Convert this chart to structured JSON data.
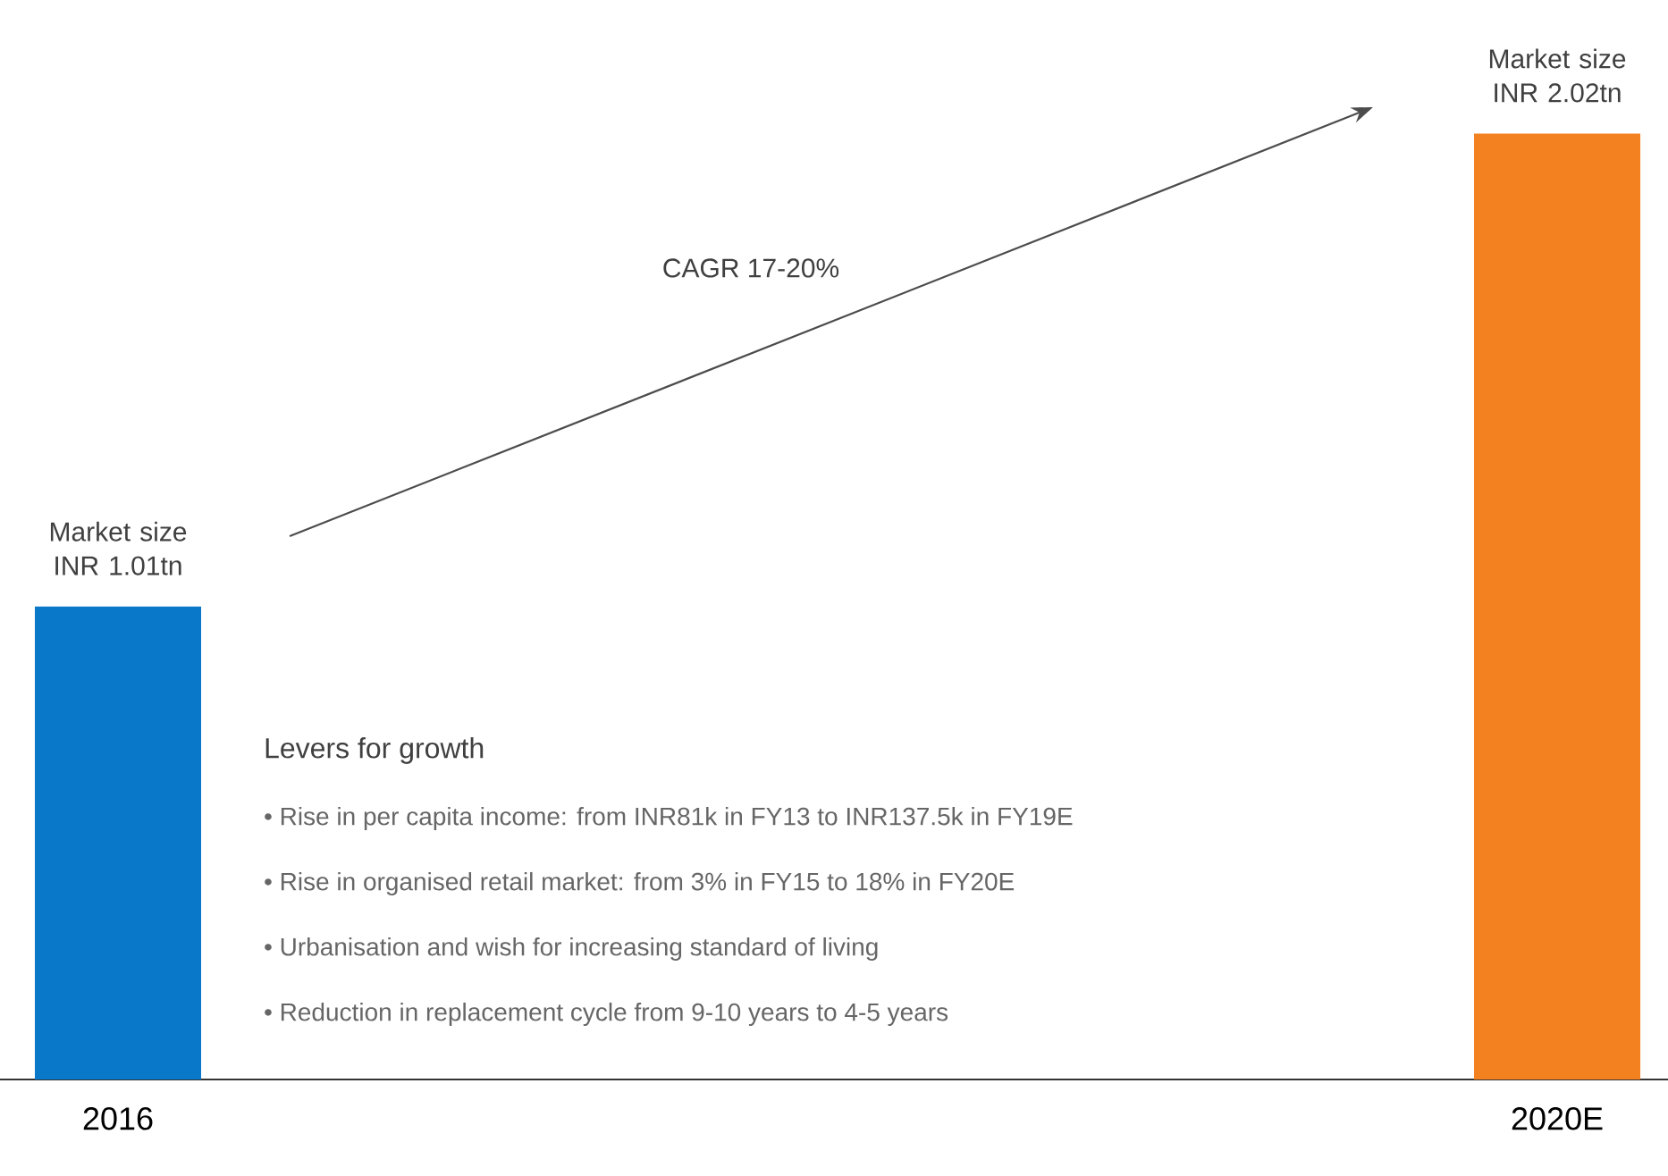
{
  "chart_data": {
    "type": "bar",
    "categories": [
      "2016",
      "2020E"
    ],
    "values": [
      1.01,
      2.02
    ],
    "colors": [
      "#0a78c8",
      "#f48120"
    ],
    "value_labels": [
      "Market size INR 1.01tn",
      "Market size INR 2.02tn"
    ],
    "tick_labels": "x",
    "annotations": [
      "CAGR 17-20%",
      "Levers for growth",
      "• Rise in per capita income: from INR81k in FY13 to INR137.5k in FY19E",
      "• Rise in organised retail market: from 3% in FY15 to 18% in FY20E",
      "• Urbanisation and wish for increasing standard of living",
      "• Reduction in replacement cycle from 9-10 years to 4-5 years"
    ]
  }
}
